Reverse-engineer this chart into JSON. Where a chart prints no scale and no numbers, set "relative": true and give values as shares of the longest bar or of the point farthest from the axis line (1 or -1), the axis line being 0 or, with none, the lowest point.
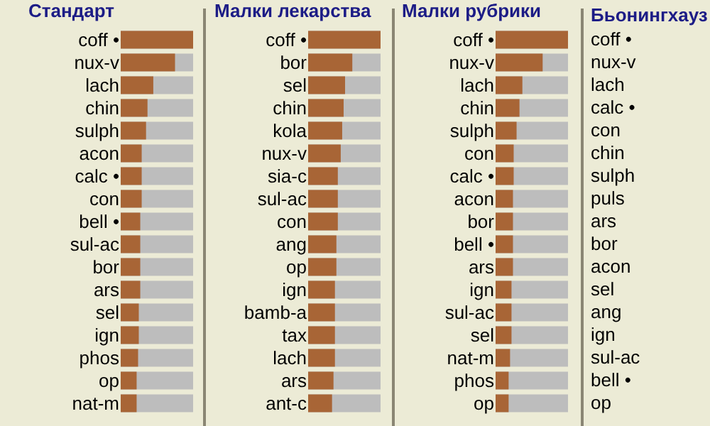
{
  "chart_data": [
    {
      "type": "bar",
      "orientation": "horizontal",
      "relative": true,
      "tick_labels": "y",
      "title": "Стандарт",
      "color": "#a86536",
      "categories": [
        "coff •",
        "nux-v",
        "lach",
        "chin",
        "sulph",
        "acon",
        "calc •",
        "con",
        "bell •",
        "sul-ac",
        "bor",
        "ars",
        "sel",
        "ign",
        "phos",
        "op",
        "nat-m"
      ],
      "values": [
        1,
        0.75,
        0.45,
        0.37,
        0.35,
        0.29,
        0.29,
        0.29,
        0.27,
        0.27,
        0.27,
        0.27,
        0.25,
        0.25,
        0.24,
        0.22,
        0.22
      ]
    },
    {
      "type": "bar",
      "orientation": "horizontal",
      "relative": true,
      "tick_labels": "y",
      "title": "Малки лекарства",
      "color": "#a86536",
      "categories": [
        "coff •",
        "bor",
        "sel",
        "chin",
        "kola",
        "nux-v",
        "sia-c",
        "sul-ac",
        "con",
        "ang",
        "op",
        "ign",
        "bamb-a",
        "tax",
        "lach",
        "ars",
        "ant-c"
      ],
      "values": [
        1,
        0.61,
        0.51,
        0.49,
        0.47,
        0.45,
        0.41,
        0.41,
        0.41,
        0.39,
        0.39,
        0.37,
        0.37,
        0.37,
        0.37,
        0.35,
        0.33
      ]
    },
    {
      "type": "bar",
      "orientation": "horizontal",
      "relative": true,
      "tick_labels": "y",
      "title": "Малки рубрики",
      "color": "#a86536",
      "categories": [
        "coff •",
        "nux-v",
        "lach",
        "chin",
        "sulph",
        "con",
        "calc •",
        "acon",
        "bor",
        "bell •",
        "ars",
        "ign",
        "sul-ac",
        "sel",
        "nat-m",
        "phos",
        "op"
      ],
      "values": [
        1,
        0.65,
        0.37,
        0.33,
        0.29,
        0.25,
        0.25,
        0.24,
        0.24,
        0.24,
        0.24,
        0.22,
        0.22,
        0.22,
        0.2,
        0.18,
        0.18
      ]
    },
    {
      "type": "other",
      "title": "Бьонингхауз",
      "categories": [
        "coff •",
        "nux-v",
        "lach",
        "calc •",
        "con",
        "chin",
        "sulph",
        "puls",
        "ars",
        "bor",
        "acon",
        "sel",
        "ang",
        "ign",
        "sul-ac",
        "bell •",
        "op"
      ]
    }
  ]
}
